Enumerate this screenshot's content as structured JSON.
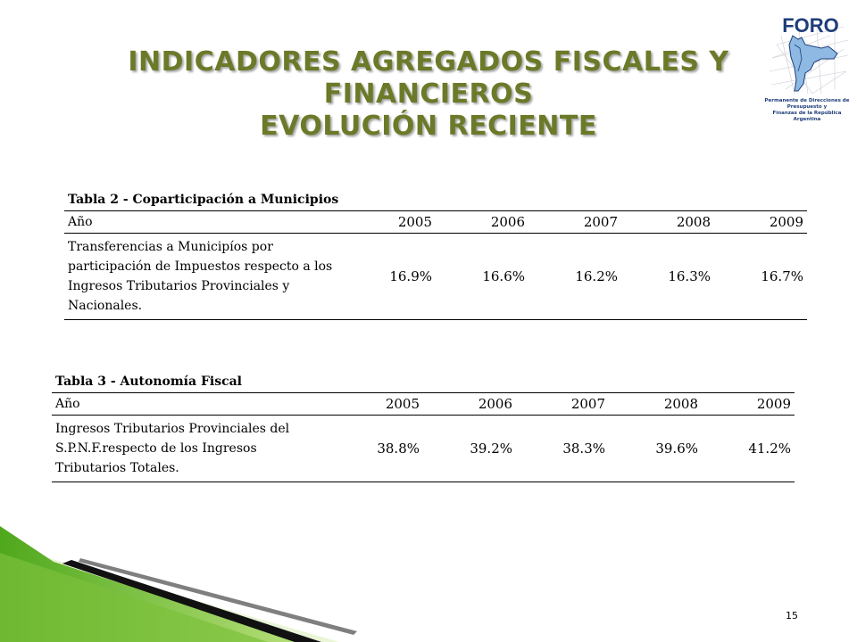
{
  "slide": {
    "title_lines": [
      "INDICADORES AGREGADOS FISCALES Y",
      "FINANCIEROS",
      "EVOLUCIÓN RECIENTE"
    ],
    "page_number": "15"
  },
  "logo": {
    "name": "FORO",
    "caption_line1": "Permanente de Direcciones de Presupuesto y",
    "caption_line2": "Finanzas de la República Argentina"
  },
  "colors": {
    "title": "#6b7a28",
    "accent_green": "#6fbf2a",
    "logo_blue": "#1e3d7a"
  },
  "tabla2": {
    "title": "Tabla 2 - Coparticipación a Municipios",
    "header_label": "Año",
    "years": [
      "2005",
      "2006",
      "2007",
      "2008",
      "2009"
    ],
    "row": {
      "description": "Transferencias a Municipíos por participación de Impuestos respecto a los Ingresos Tributarios Provinciales y Nacionales.",
      "values": [
        "16.9%",
        "16.6%",
        "16.2%",
        "16.3%",
        "16.7%"
      ]
    }
  },
  "tabla3": {
    "title": "Tabla 3 - Autonomía Fiscal",
    "header_label": "Año",
    "years": [
      "2005",
      "2006",
      "2007",
      "2008",
      "2009"
    ],
    "row": {
      "description": "Ingresos Tributarios Provinciales del S.P.N.F.respecto de los Ingresos Tributarios Totales.",
      "values": [
        "38.8%",
        "39.2%",
        "38.3%",
        "39.6%",
        "41.2%"
      ]
    }
  }
}
